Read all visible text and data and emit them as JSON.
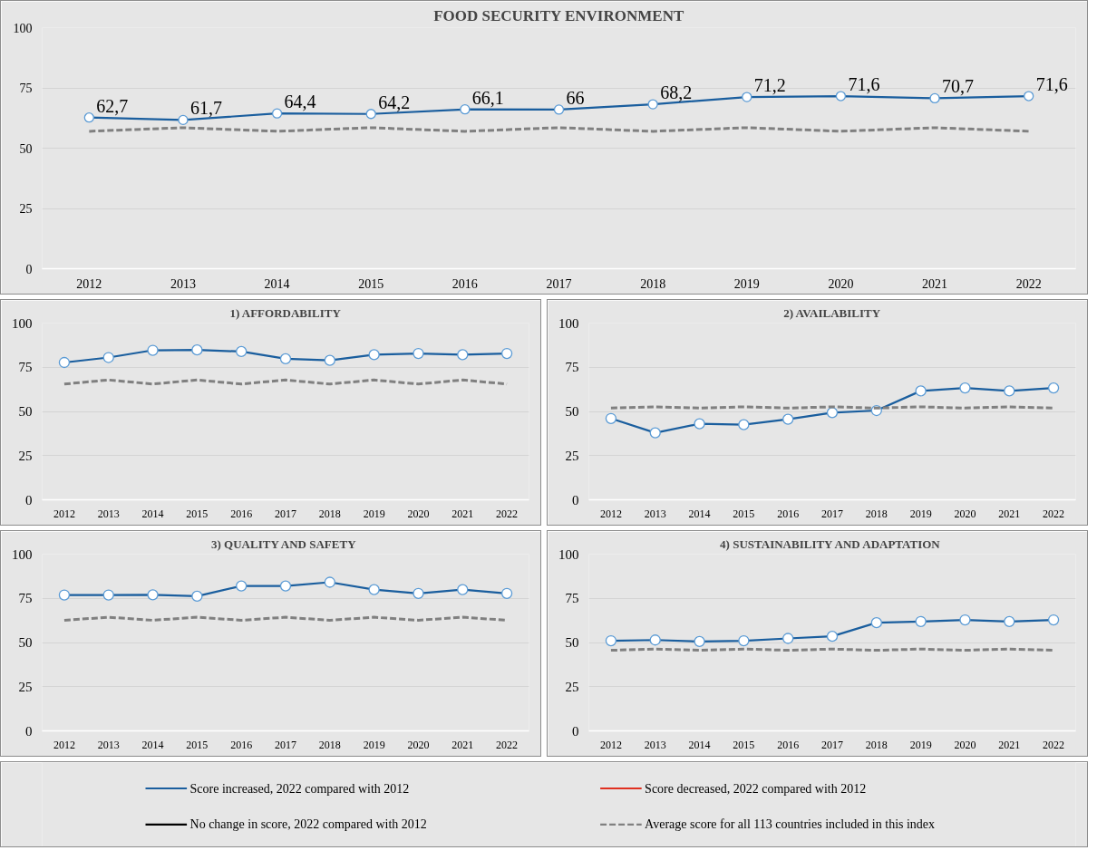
{
  "chart_data": [
    {
      "type": "line",
      "title": "FOOD SECURITY ENVIRONMENT",
      "categories": [
        "2012",
        "2013",
        "2014",
        "2015",
        "2016",
        "2017",
        "2018",
        "2019",
        "2020",
        "2021",
        "2022"
      ],
      "ylim": [
        0,
        100
      ],
      "yticks": [
        0,
        25,
        50,
        75,
        100
      ],
      "grid": "y",
      "legend": "bottom",
      "series": [
        {
          "name": "Score increased, 2022 compared with 2012",
          "color": "#1a5e9e",
          "marker": "circle",
          "line_style": "solid",
          "values": [
            62.7,
            61.7,
            64.4,
            64.2,
            66.1,
            66,
            68.2,
            71.2,
            71.6,
            70.7,
            71.6
          ],
          "value_labels": [
            "62,7",
            "61,7",
            "64,4",
            "64,2",
            "66,1",
            "66",
            "68,2",
            "71,2",
            "71,6",
            "70,7",
            "71,6"
          ]
        },
        {
          "name": "Score decreased, 2022 compared with 2012",
          "color": "#e03020",
          "marker": "none",
          "line_style": "solid",
          "values": [
            null,
            null,
            null,
            null,
            null,
            null,
            null,
            null,
            null,
            null,
            null
          ]
        },
        {
          "name": "No change in score, 2022 compared with 2012",
          "color": "#000000",
          "marker": "none",
          "line_style": "solid",
          "values": [
            null,
            null,
            null,
            null,
            null,
            null,
            null,
            null,
            null,
            null,
            null
          ]
        },
        {
          "name": "Average score for all 113 countries included in this index",
          "color": "#808080",
          "marker": "none",
          "line_style": "dashed",
          "values": [
            57,
            58.5,
            57,
            58.5,
            57,
            58.5,
            57,
            58.5,
            57,
            58.5,
            57
          ]
        }
      ]
    },
    {
      "type": "line",
      "title": "1) AFFORDABILITY",
      "categories": [
        "2012",
        "2013",
        "2014",
        "2015",
        "2016",
        "2017",
        "2018",
        "2019",
        "2020",
        "2021",
        "2022"
      ],
      "ylim": [
        0,
        100
      ],
      "yticks": [
        0,
        25,
        50,
        75,
        100
      ],
      "grid": "y",
      "series": [
        {
          "color": "#1a5e9e",
          "marker": "circle",
          "line_style": "solid",
          "values": [
            77.7,
            80.5,
            84.6,
            84.8,
            83.9,
            79.8,
            78.9,
            82.1,
            82.8,
            82.1,
            82.8
          ]
        },
        {
          "color": "#808080",
          "marker": "none",
          "line_style": "dashed",
          "values": [
            65.5,
            67.8,
            65.5,
            67.8,
            65.5,
            67.8,
            65.5,
            67.8,
            65.5,
            67.8,
            65.5
          ]
        }
      ]
    },
    {
      "type": "line",
      "title": "2) AVAILABILITY",
      "categories": [
        "2012",
        "2013",
        "2014",
        "2015",
        "2016",
        "2017",
        "2018",
        "2019",
        "2020",
        "2021",
        "2022"
      ],
      "ylim": [
        0,
        100
      ],
      "yticks": [
        0,
        25,
        50,
        75,
        100
      ],
      "grid": "y",
      "series": [
        {
          "color": "#1a5e9e",
          "marker": "circle",
          "line_style": "solid",
          "values": [
            46,
            37.9,
            43,
            42.5,
            45.6,
            49.3,
            50.5,
            61.6,
            63.3,
            61.6,
            63.3
          ]
        },
        {
          "color": "#808080",
          "marker": "none",
          "line_style": "dashed",
          "values": [
            51.9,
            52.6,
            51.9,
            52.6,
            51.9,
            52.6,
            51.9,
            52.6,
            51.9,
            52.6,
            51.9
          ]
        }
      ]
    },
    {
      "type": "line",
      "title": "3) QUALITY  AND SAFETY",
      "categories": [
        "2012",
        "2013",
        "2014",
        "2015",
        "2016",
        "2017",
        "2018",
        "2019",
        "2020",
        "2021",
        "2022"
      ],
      "ylim": [
        0,
        100
      ],
      "yticks": [
        0,
        25,
        50,
        75,
        100
      ],
      "grid": "y",
      "series": [
        {
          "color": "#1a5e9e",
          "marker": "circle",
          "line_style": "solid",
          "values": [
            76.9,
            76.9,
            77,
            76.2,
            82,
            82,
            84.1,
            79.9,
            77.8,
            79.9,
            77.8
          ]
        },
        {
          "color": "#808080",
          "marker": "none",
          "line_style": "dashed",
          "values": [
            62.6,
            64.3,
            62.6,
            64.3,
            62.6,
            64.3,
            62.6,
            64.3,
            62.6,
            64.3,
            62.6
          ]
        }
      ]
    },
    {
      "type": "line",
      "title": "4) SUSTAINABILITY  AND ADAPTATION",
      "categories": [
        "2012",
        "2013",
        "2014",
        "2015",
        "2016",
        "2017",
        "2018",
        "2019",
        "2020",
        "2021",
        "2022"
      ],
      "ylim": [
        0,
        100
      ],
      "yticks": [
        0,
        25,
        50,
        75,
        100
      ],
      "grid": "y",
      "series": [
        {
          "color": "#1a5e9e",
          "marker": "circle",
          "line_style": "solid",
          "values": [
            51,
            51.4,
            50.6,
            51,
            52.3,
            53.5,
            61.2,
            61.9,
            62.8,
            61.9,
            62.8
          ]
        },
        {
          "color": "#808080",
          "marker": "none",
          "line_style": "dashed",
          "values": [
            45.6,
            46.3,
            45.6,
            46.3,
            45.6,
            46.3,
            45.6,
            46.3,
            45.6,
            46.3,
            45.6
          ]
        }
      ]
    }
  ]
}
